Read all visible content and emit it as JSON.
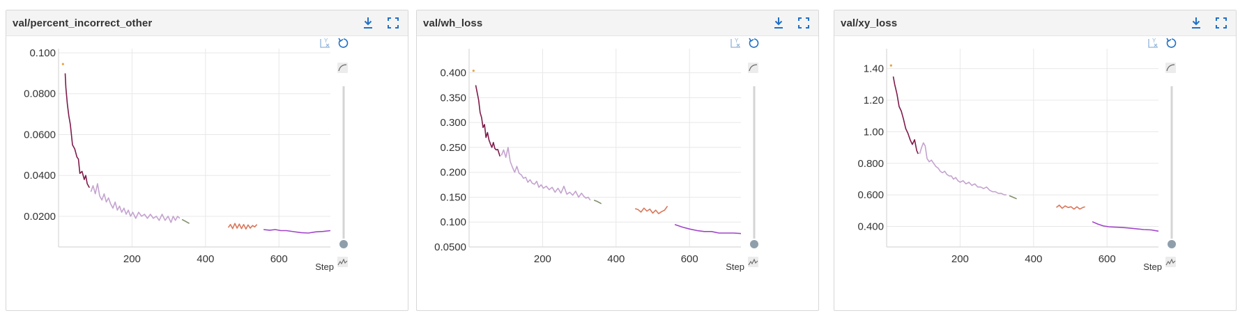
{
  "theme": {
    "grid_color": "#e8e8e8",
    "icon_blue": "#1f6fc5",
    "icon_light_blue": "#8fb3d9",
    "slider_track": "#d5d5d5",
    "slider_knob": "#8e9fab"
  },
  "charts": [
    {
      "title": "val/percent_incorrect_other",
      "x_axis_label": "Step",
      "y_ticks": [
        "0.100",
        "0.0800",
        "0.0600",
        "0.0400",
        "0.0200"
      ],
      "x_ticks": [
        "200",
        "400",
        "600"
      ],
      "icons": {
        "download": "download-icon",
        "fullscreen": "fullscreen-icon",
        "log_y": "log-scale-y-icon",
        "reset": "reset-zoom-icon",
        "smooth": "smooth-curve-icon",
        "raw": "raw-data-icon"
      }
    },
    {
      "title": "val/wh_loss",
      "x_axis_label": "Step",
      "y_ticks": [
        "0.400",
        "0.350",
        "0.300",
        "0.250",
        "0.200",
        "0.150",
        "0.100",
        "0.0500"
      ],
      "x_ticks": [
        "200",
        "400",
        "600"
      ],
      "icons": {
        "download": "download-icon",
        "fullscreen": "fullscreen-icon",
        "log_y": "log-scale-y-icon",
        "reset": "reset-zoom-icon",
        "smooth": "smooth-curve-icon",
        "raw": "raw-data-icon"
      }
    },
    {
      "title": "val/xy_loss",
      "x_axis_label": "Step",
      "y_ticks": [
        "1.40",
        "1.20",
        "1.00",
        "0.800",
        "0.600",
        "0.400"
      ],
      "x_ticks": [
        "200",
        "400",
        "600"
      ],
      "icons": {
        "download": "download-icon",
        "fullscreen": "fullscreen-icon",
        "log_y": "log-scale-y-icon",
        "reset": "reset-zoom-icon",
        "smooth": "smooth-curve-icon",
        "raw": "raw-data-icon"
      }
    }
  ],
  "chart_data": [
    {
      "type": "line",
      "title": "val/percent_incorrect_other",
      "xlabel": "Step",
      "ylabel": "",
      "xlim": [
        0,
        740
      ],
      "ylim": [
        0.005,
        0.1
      ],
      "y_ticks": [
        0.02,
        0.04,
        0.06,
        0.08,
        0.1
      ],
      "x_ticks": [
        200,
        400,
        600
      ],
      "series": [
        {
          "color": "#e8a33a",
          "x": [
            12
          ],
          "y": [
            0.0945
          ]
        },
        {
          "color": "#7d1a49",
          "x": [
            18,
            20,
            24,
            28,
            32,
            38,
            44,
            50,
            54,
            58,
            64,
            70,
            74,
            78,
            84
          ],
          "y": [
            0.09,
            0.083,
            0.075,
            0.069,
            0.065,
            0.055,
            0.053,
            0.049,
            0.048,
            0.041,
            0.042,
            0.038,
            0.04,
            0.036,
            0.034
          ]
        },
        {
          "color": "#c4a3cf",
          "x": [
            88,
            94,
            100,
            106,
            112,
            118,
            124,
            130,
            136,
            142,
            148,
            154,
            160,
            166,
            172,
            178,
            184,
            190,
            196,
            202,
            210,
            218,
            226,
            234,
            242,
            250,
            258,
            266,
            274,
            282,
            290,
            298,
            306,
            312,
            318,
            324,
            330
          ],
          "y": [
            0.032,
            0.035,
            0.031,
            0.036,
            0.03,
            0.028,
            0.031,
            0.027,
            0.029,
            0.026,
            0.024,
            0.027,
            0.023,
            0.025,
            0.022,
            0.024,
            0.021,
            0.023,
            0.02,
            0.022,
            0.019,
            0.022,
            0.02,
            0.021,
            0.019,
            0.021,
            0.019,
            0.02,
            0.018,
            0.021,
            0.018,
            0.02,
            0.017,
            0.02,
            0.018,
            0.02,
            0.019
          ]
        },
        {
          "color": "#7f8f6a",
          "x": [
            336,
            346,
            356
          ],
          "y": [
            0.0185,
            0.0175,
            0.0165
          ]
        },
        {
          "color": "#d9765a",
          "x": [
            462,
            468,
            474,
            480,
            486,
            492,
            498,
            504,
            510,
            516,
            522,
            528,
            534,
            540
          ],
          "y": [
            0.0145,
            0.016,
            0.014,
            0.0165,
            0.0142,
            0.0162,
            0.014,
            0.016,
            0.0138,
            0.0158,
            0.0142,
            0.0155,
            0.0148,
            0.016
          ]
        },
        {
          "color": "#a044c8",
          "x": [
            558,
            575,
            590,
            605,
            620,
            640,
            660,
            680,
            700,
            720,
            740
          ],
          "y": [
            0.0135,
            0.0132,
            0.0135,
            0.013,
            0.013,
            0.0125,
            0.012,
            0.0118,
            0.0124,
            0.0126,
            0.013
          ]
        }
      ]
    },
    {
      "type": "line",
      "title": "val/wh_loss",
      "xlabel": "Step",
      "ylabel": "",
      "xlim": [
        0,
        740
      ],
      "ylim": [
        0.05,
        0.44
      ],
      "y_ticks": [
        0.05,
        0.1,
        0.15,
        0.2,
        0.25,
        0.3,
        0.35,
        0.4
      ],
      "x_ticks": [
        200,
        400,
        600
      ],
      "series": [
        {
          "color": "#e8a33a",
          "x": [
            12
          ],
          "y": [
            0.404
          ]
        },
        {
          "color": "#7d1a49",
          "x": [
            18,
            22,
            26,
            30,
            34,
            38,
            42,
            46,
            50,
            54,
            58,
            62,
            66,
            70,
            74,
            78,
            84
          ],
          "y": [
            0.375,
            0.36,
            0.345,
            0.32,
            0.31,
            0.29,
            0.296,
            0.27,
            0.28,
            0.265,
            0.257,
            0.25,
            0.26,
            0.248,
            0.245,
            0.246,
            0.232
          ]
        },
        {
          "color": "#c4a3cf",
          "x": [
            88,
            94,
            100,
            106,
            112,
            118,
            124,
            130,
            136,
            142,
            148,
            154,
            160,
            166,
            172,
            178,
            184,
            190,
            196,
            202,
            210,
            218,
            226,
            234,
            242,
            250,
            258,
            266,
            274,
            282,
            290,
            298,
            306,
            312,
            318,
            324,
            330
          ],
          "y": [
            0.234,
            0.245,
            0.23,
            0.25,
            0.222,
            0.21,
            0.2,
            0.212,
            0.198,
            0.195,
            0.188,
            0.19,
            0.18,
            0.185,
            0.178,
            0.176,
            0.182,
            0.17,
            0.175,
            0.168,
            0.172,
            0.165,
            0.17,
            0.16,
            0.168,
            0.158,
            0.172,
            0.156,
            0.16,
            0.154,
            0.162,
            0.15,
            0.158,
            0.152,
            0.148,
            0.15,
            0.144
          ]
        },
        {
          "color": "#7f8f6a",
          "x": [
            340,
            350,
            360
          ],
          "y": [
            0.144,
            0.141,
            0.137
          ]
        },
        {
          "color": "#d9765a",
          "x": [
            452,
            460,
            468,
            476,
            484,
            492,
            500,
            508,
            516,
            524,
            532,
            540
          ],
          "y": [
            0.127,
            0.125,
            0.12,
            0.128,
            0.122,
            0.126,
            0.118,
            0.124,
            0.117,
            0.121,
            0.124,
            0.132
          ]
        },
        {
          "color": "#a044c8",
          "x": [
            560,
            580,
            600,
            620,
            640,
            660,
            680,
            700,
            720,
            740
          ],
          "y": [
            0.095,
            0.09,
            0.086,
            0.083,
            0.081,
            0.081,
            0.078,
            0.078,
            0.078,
            0.077
          ]
        }
      ]
    },
    {
      "type": "line",
      "title": "val/xy_loss",
      "xlabel": "Step",
      "ylabel": "",
      "xlim": [
        0,
        740
      ],
      "ylim": [
        0.27,
        1.5
      ],
      "y_ticks": [
        0.4,
        0.6,
        0.8,
        1.0,
        1.2,
        1.4
      ],
      "x_ticks": [
        200,
        400,
        600
      ],
      "series": [
        {
          "color": "#e8a33a",
          "x": [
            12
          ],
          "y": [
            1.42
          ]
        },
        {
          "color": "#7d1a49",
          "x": [
            18,
            22,
            28,
            34,
            40,
            46,
            52,
            58,
            64,
            70,
            76,
            82,
            86
          ],
          "y": [
            1.35,
            1.3,
            1.24,
            1.16,
            1.13,
            1.08,
            1.02,
            0.99,
            0.95,
            0.92,
            0.95,
            0.88,
            0.86
          ]
        },
        {
          "color": "#c4a3cf",
          "x": [
            90,
            95,
            100,
            105,
            110,
            116,
            122,
            128,
            134,
            140,
            146,
            152,
            158,
            164,
            170,
            176,
            182,
            188,
            194,
            200,
            208,
            216,
            224,
            232,
            240,
            248,
            256,
            264,
            272,
            280,
            288,
            296,
            304,
            312,
            320,
            326
          ],
          "y": [
            0.86,
            0.9,
            0.93,
            0.91,
            0.83,
            0.81,
            0.82,
            0.8,
            0.78,
            0.77,
            0.75,
            0.74,
            0.75,
            0.73,
            0.72,
            0.72,
            0.7,
            0.71,
            0.69,
            0.68,
            0.69,
            0.67,
            0.68,
            0.66,
            0.67,
            0.65,
            0.65,
            0.64,
            0.65,
            0.63,
            0.62,
            0.62,
            0.61,
            0.61,
            0.6,
            0.6
          ]
        },
        {
          "color": "#7f8f6a",
          "x": [
            334,
            344,
            354
          ],
          "y": [
            0.595,
            0.585,
            0.575
          ]
        },
        {
          "color": "#d9765a",
          "x": [
            462,
            470,
            478,
            486,
            494,
            502,
            510,
            518,
            526,
            534,
            540
          ],
          "y": [
            0.52,
            0.535,
            0.515,
            0.53,
            0.52,
            0.525,
            0.51,
            0.525,
            0.51,
            0.52,
            0.525
          ]
        },
        {
          "color": "#a044c8",
          "x": [
            560,
            575,
            590,
            605,
            620,
            640,
            660,
            680,
            700,
            720,
            740
          ],
          "y": [
            0.43,
            0.415,
            0.403,
            0.398,
            0.396,
            0.394,
            0.39,
            0.385,
            0.38,
            0.378,
            0.37
          ]
        }
      ]
    }
  ]
}
